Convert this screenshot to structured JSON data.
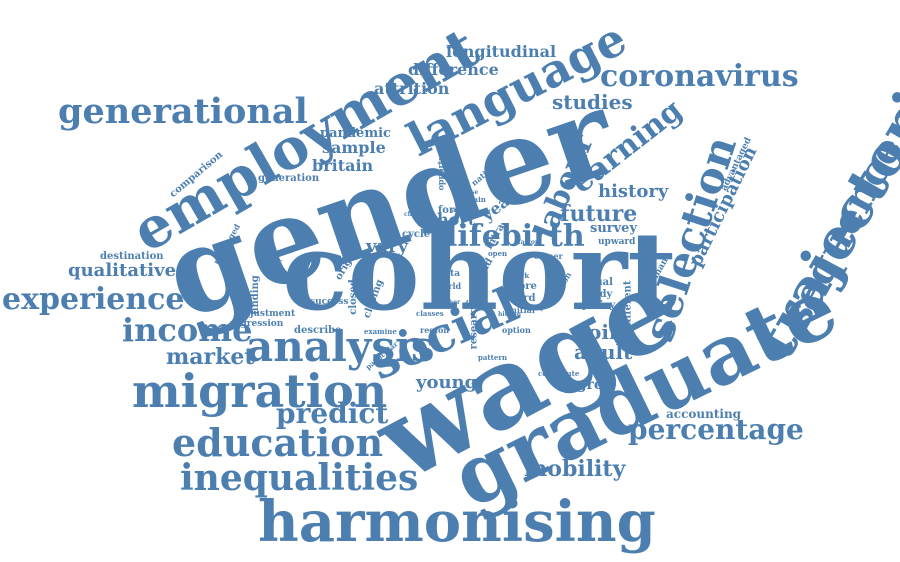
{
  "color": "#4c7fb0",
  "words": [
    {
      "text": "gender",
      "weight": 100,
      "orientation": "tilted-up"
    },
    {
      "text": "cohort",
      "weight": 92,
      "orientation": "horizontal"
    },
    {
      "text": "wage",
      "weight": 88,
      "orientation": "tilted-up"
    },
    {
      "text": "graduate",
      "weight": 86,
      "orientation": "tilted-up"
    },
    {
      "text": "harmonising",
      "weight": 60,
      "orientation": "horizontal"
    },
    {
      "text": "employment",
      "weight": 58,
      "orientation": "tilted-up"
    },
    {
      "text": "trajectories",
      "weight": 56,
      "orientation": "tilted-up"
    },
    {
      "text": "language",
      "weight": 50,
      "orientation": "tilted-up"
    },
    {
      "text": "selection",
      "weight": 48,
      "orientation": "tilted-up"
    },
    {
      "text": "social",
      "weight": 46,
      "orientation": "tilted-up"
    },
    {
      "text": "migration",
      "weight": 46,
      "orientation": "horizontal"
    },
    {
      "text": "sequence",
      "weight": 44,
      "orientation": "tilted-up"
    },
    {
      "text": "analysis",
      "weight": 42,
      "orientation": "horizontal"
    },
    {
      "text": "education",
      "weight": 40,
      "orientation": "horizontal"
    },
    {
      "text": "inequalities",
      "weight": 40,
      "orientation": "horizontal"
    },
    {
      "text": "generational",
      "weight": 36,
      "orientation": "horizontal"
    },
    {
      "text": "coronavirus",
      "weight": 34,
      "orientation": "horizontal"
    },
    {
      "text": "experience",
      "weight": 34,
      "orientation": "horizontal"
    },
    {
      "text": "income",
      "weight": 34,
      "orientation": "horizontal"
    },
    {
      "text": "lifebirth",
      "weight": 30,
      "orientation": "horizontal"
    },
    {
      "text": "labour",
      "weight": 30,
      "orientation": "tilted-up"
    },
    {
      "text": "earning",
      "weight": 30,
      "orientation": "tilted-up"
    },
    {
      "text": "percentage",
      "weight": 30,
      "orientation": "horizontal"
    },
    {
      "text": "predict",
      "weight": 30,
      "orientation": "horizontal"
    },
    {
      "text": "future",
      "weight": 24,
      "orientation": "horizontal"
    },
    {
      "text": "mobility",
      "weight": 24,
      "orientation": "horizontal"
    },
    {
      "text": "market",
      "weight": 22,
      "orientation": "horizontal"
    },
    {
      "text": "studies",
      "weight": 22,
      "orientation": "horizontal"
    },
    {
      "text": "participation",
      "weight": 20,
      "orientation": "tilted-up"
    },
    {
      "text": "point",
      "weight": 20,
      "orientation": "horizontal"
    },
    {
      "text": "adult",
      "weight": 20,
      "orientation": "horizontal"
    },
    {
      "text": "history",
      "weight": 20,
      "orientation": "horizontal"
    },
    {
      "text": "young",
      "weight": 20,
      "orientation": "horizontal"
    },
    {
      "text": "qualitative",
      "weight": 20,
      "orientation": "horizontal"
    },
    {
      "text": "longitudinal",
      "weight": 16,
      "orientation": "horizontal"
    },
    {
      "text": "difference",
      "weight": 16,
      "orientation": "horizontal"
    },
    {
      "text": "attrition",
      "weight": 16,
      "orientation": "horizontal"
    },
    {
      "text": "sample",
      "weight": 16,
      "orientation": "horizontal"
    },
    {
      "text": "britain",
      "weight": 16,
      "orientation": "horizontal"
    },
    {
      "text": "pandemic",
      "weight": 14,
      "orientation": "horizontal"
    },
    {
      "text": "vary",
      "weight": 18,
      "orientation": "horizontal"
    },
    {
      "text": "short",
      "weight": 16,
      "orientation": "horizontal"
    },
    {
      "text": "year",
      "weight": 16,
      "orientation": "tilted-up"
    },
    {
      "text": "degree",
      "weight": 14,
      "orientation": "horizontal"
    },
    {
      "text": "survey",
      "weight": 14,
      "orientation": "horizontal"
    },
    {
      "text": "accounting",
      "weight": 12,
      "orientation": "horizontal"
    },
    {
      "text": "comparison",
      "weight": 10,
      "orientation": "tilted-up"
    },
    {
      "text": "generation",
      "weight": 10,
      "orientation": "horizontal"
    },
    {
      "text": "destination",
      "weight": 10,
      "orientation": "horizontal"
    },
    {
      "text": "adjustment",
      "weight": 9,
      "orientation": "horizontal"
    },
    {
      "text": "regression",
      "weight": 9,
      "orientation": "horizontal"
    },
    {
      "text": "describe",
      "weight": 10,
      "orientation": "horizontal"
    },
    {
      "text": "finding",
      "weight": 10,
      "orientation": "vertical"
    },
    {
      "text": "origin",
      "weight": 10,
      "orientation": "tilted-up"
    },
    {
      "text": "closed",
      "weight": 10,
      "orientation": "vertical"
    },
    {
      "text": "closing",
      "weight": 10,
      "orientation": "tilted-up"
    },
    {
      "text": "success",
      "weight": 9,
      "orientation": "horizontal"
    },
    {
      "text": "cycle",
      "weight": 10,
      "orientation": "horizontal"
    },
    {
      "text": "privileged",
      "weight": 8,
      "orientation": "tilted-up"
    },
    {
      "text": "research",
      "weight": 10,
      "orientation": "vertical"
    },
    {
      "text": "force",
      "weight": 10,
      "orientation": "horizontal"
    },
    {
      "text": "intra",
      "weight": 10,
      "orientation": "tilted-up"
    },
    {
      "text": "old",
      "weight": 10,
      "orientation": "tilted-up"
    },
    {
      "text": "opportunity",
      "weight": 8,
      "orientation": "vertical"
    },
    {
      "text": "national",
      "weight": 8,
      "orientation": "tilted-up"
    },
    {
      "text": "advantaged",
      "weight": 9,
      "orientation": "tilted-up"
    },
    {
      "text": "upward",
      "weight": 9,
      "orientation": "horizontal"
    },
    {
      "text": "career",
      "weight": 8,
      "orientation": "horizontal"
    },
    {
      "text": "woman",
      "weight": 9,
      "orientation": "tilted-up"
    },
    {
      "text": "equal",
      "weight": 10,
      "orientation": "horizontal"
    },
    {
      "text": "study",
      "weight": 10,
      "orientation": "horizontal"
    },
    {
      "text": "policy",
      "weight": 10,
      "orientation": "horizontal"
    },
    {
      "text": "different",
      "weight": 10,
      "orientation": "vertical"
    },
    {
      "text": "person",
      "weight": 8,
      "orientation": "tilted-up"
    },
    {
      "text": "more",
      "weight": 10,
      "orientation": "horizontal"
    },
    {
      "text": "word",
      "weight": 10,
      "orientation": "horizontal"
    },
    {
      "text": "initial",
      "weight": 8,
      "orientation": "horizontal"
    },
    {
      "text": "data",
      "weight": 9,
      "orientation": "horizontal"
    },
    {
      "text": "world",
      "weight": 8,
      "orientation": "horizontal"
    },
    {
      "text": "option",
      "weight": 8,
      "orientation": "horizontal"
    },
    {
      "text": "region",
      "weight": 8,
      "orientation": "horizontal"
    },
    {
      "text": "examine",
      "weight": 7,
      "orientation": "horizontal"
    },
    {
      "text": "pattern",
      "weight": 7,
      "orientation": "horizontal"
    },
    {
      "text": "particular",
      "weight": 7,
      "orientation": "tilted-up"
    },
    {
      "text": "contribute",
      "weight": 7,
      "orientation": "horizontal"
    },
    {
      "text": "remain",
      "weight": 7,
      "orientation": "horizontal"
    },
    {
      "text": "class",
      "weight": 7,
      "orientation": "horizontal"
    },
    {
      "text": "classes",
      "weight": 7,
      "orientation": "horizontal"
    },
    {
      "text": "aged",
      "weight": 7,
      "orientation": "horizontal"
    },
    {
      "text": "larger",
      "weight": 7,
      "orientation": "horizontal"
    },
    {
      "text": "change",
      "weight": 6,
      "orientation": "horizontal"
    },
    {
      "text": "britian",
      "weight": 6,
      "orientation": "horizontal"
    },
    {
      "text": "diverse",
      "weight": 6,
      "orientation": "horizontal"
    },
    {
      "text": "account",
      "weight": 6,
      "orientation": "horizontal"
    },
    {
      "text": "higher",
      "weight": 6,
      "orientation": "horizontal"
    },
    {
      "text": "work",
      "weight": 7,
      "orientation": "horizontal"
    },
    {
      "text": "open",
      "weight": 7,
      "orientation": "horizontal"
    },
    {
      "text": "role",
      "weight": 6,
      "orientation": "horizontal"
    },
    {
      "text": "factor",
      "weight": 6,
      "orientation": "horizontal"
    },
    {
      "text": "living",
      "weight": 6,
      "orientation": "tilted-up"
    },
    {
      "text": "hitting",
      "weight": 6,
      "orientation": "horizontal"
    }
  ]
}
